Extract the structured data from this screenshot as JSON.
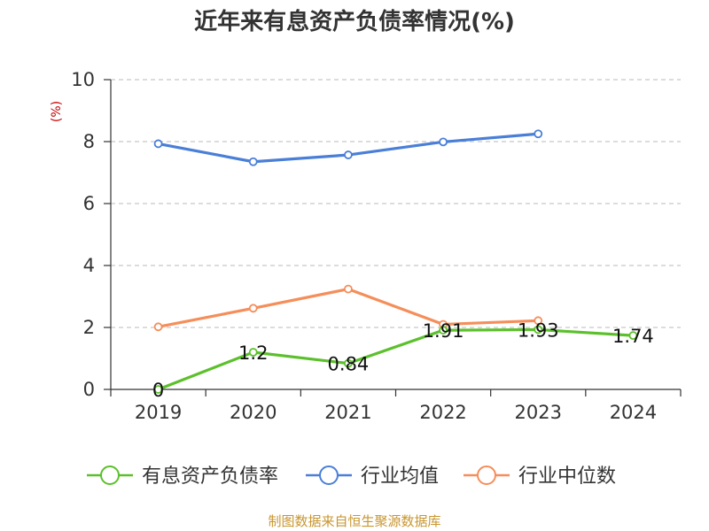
{
  "chart_data": {
    "type": "line",
    "title": "近年来有息资产负债率情况(%)",
    "ylabel": "(%)",
    "xlabel": "",
    "categories": [
      "2019",
      "2020",
      "2021",
      "2022",
      "2023",
      "2024"
    ],
    "ylim": [
      0,
      10
    ],
    "yticks": [
      0,
      2,
      4,
      6,
      8,
      10
    ],
    "grid": true,
    "legend_position": "bottom",
    "series": [
      {
        "name": "有息资产负债率",
        "color": "#5cc02c",
        "values": [
          0,
          1.2,
          0.84,
          1.91,
          1.93,
          1.74
        ],
        "labels": [
          "0",
          "1.2",
          "0.84",
          "1.91",
          "1.93",
          "1.74"
        ]
      },
      {
        "name": "行业均值",
        "color": "#4a7fd8",
        "values": [
          7.93,
          7.35,
          7.57,
          7.99,
          8.25,
          null
        ]
      },
      {
        "name": "行业中位数",
        "color": "#f58e5a",
        "values": [
          2.02,
          2.62,
          3.24,
          2.1,
          2.22,
          null
        ]
      }
    ]
  },
  "source": "制图数据来自恒生聚源数据库"
}
